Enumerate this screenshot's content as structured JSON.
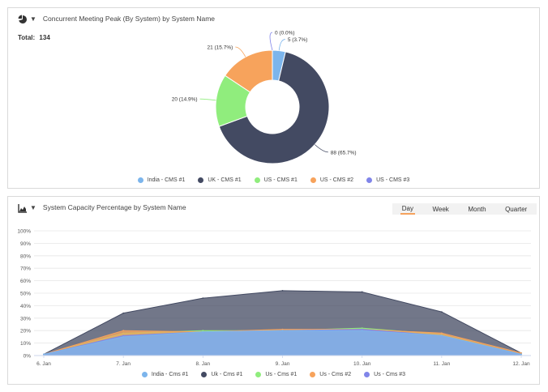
{
  "pie_panel": {
    "title": "Concurrent Meeting Peak (By System) by System Name",
    "total_label": "Total:",
    "total_value": "134",
    "legend": [
      {
        "label": "India - CMS #1",
        "color": "#7cb5ec"
      },
      {
        "label": "UK - CMS #1",
        "color": "#434a62"
      },
      {
        "label": "US - CMS #1",
        "color": "#90ed7d"
      },
      {
        "label": "US - CMS #2",
        "color": "#f7a35c"
      },
      {
        "label": "US - CMS #3",
        "color": "#8085e9"
      }
    ]
  },
  "area_panel": {
    "title": "System Capacity Percentage by System Name",
    "range_tabs": [
      "Day",
      "Week",
      "Month",
      "Quarter"
    ],
    "active_tab": "Day",
    "legend": [
      {
        "label": "India - Cms #1",
        "color": "#7cb5ec"
      },
      {
        "label": "Uk - Cms #1",
        "color": "#434a62"
      },
      {
        "label": "Us - Cms #1",
        "color": "#90ed7d"
      },
      {
        "label": "Us - Cms #2",
        "color": "#f7a35c"
      },
      {
        "label": "Us - Cms #3",
        "color": "#8085e9"
      }
    ]
  },
  "chart_data": [
    {
      "type": "pie",
      "title": "Concurrent Meeting Peak (By System) by System Name",
      "slices": [
        {
          "name": "India - CMS #1",
          "value": 5,
          "label": "5 (3.7%)",
          "color": "#7cb5ec"
        },
        {
          "name": "UK - CMS #1",
          "value": 88,
          "label": "88 (65.7%)",
          "color": "#434a62"
        },
        {
          "name": "US - CMS #1",
          "value": 20,
          "label": "20 (14.9%)",
          "color": "#90ed7d"
        },
        {
          "name": "US - CMS #2",
          "value": 21,
          "label": "21 (15.7%)",
          "color": "#f7a35c"
        },
        {
          "name": "US - CMS #3",
          "value": 0,
          "label": "0 (0.0%)",
          "color": "#8085e9"
        }
      ]
    },
    {
      "type": "area",
      "title": "System Capacity Percentage by System Name",
      "categories": [
        "6. Jan",
        "7. Jan",
        "8. Jan",
        "9. Jan",
        "10. Jan",
        "11. Jan",
        "12. Jan"
      ],
      "ylim": [
        0,
        100
      ],
      "yticks": [
        "0%",
        "10%",
        "20%",
        "30%",
        "40%",
        "50%",
        "60%",
        "70%",
        "80%",
        "90%",
        "100%"
      ],
      "grid": true,
      "series": [
        {
          "name": "Uk - Cms #1",
          "color": "#434a62",
          "values": [
            1,
            34,
            46,
            52,
            51,
            35,
            2
          ]
        },
        {
          "name": "Us - Cms #1",
          "color": "#90ed7d",
          "values": [
            1,
            18,
            20,
            20,
            22,
            17,
            1
          ]
        },
        {
          "name": "Us - Cms #2",
          "color": "#f7a35c",
          "values": [
            1,
            20,
            19,
            21,
            21,
            18,
            2
          ]
        },
        {
          "name": "Us - Cms #3",
          "color": "#8085e9",
          "values": [
            1,
            16,
            19,
            20,
            21,
            16,
            1
          ]
        },
        {
          "name": "India - Cms #1",
          "color": "#7cb5ec",
          "values": [
            1,
            15,
            19,
            20,
            20,
            16,
            1
          ]
        }
      ]
    }
  ]
}
